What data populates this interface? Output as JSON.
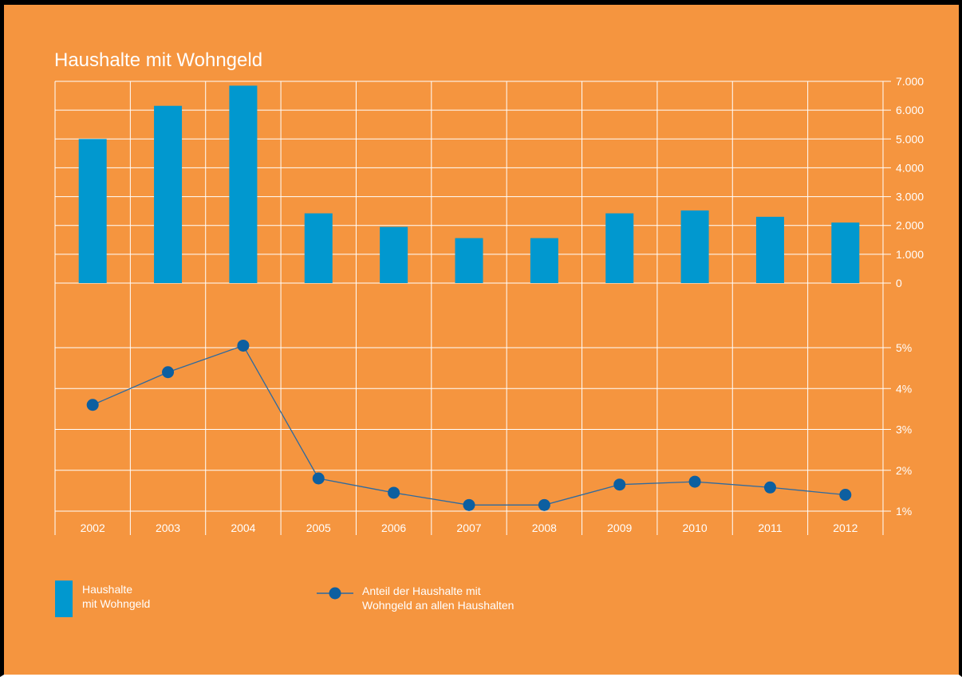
{
  "title": "Haushalte mit Wohngeld",
  "colors": {
    "background": "#f5953f",
    "bar": "#0198cf",
    "line": "#2d6aa0",
    "grid": "#ffffff"
  },
  "legend": {
    "bar_line1": "Haushalte",
    "bar_line2": "mit Wohngeld",
    "line_line1": "Anteil der Haushalte mit",
    "line_line2": "Wohngeld an allen Haushalten"
  },
  "chart_data": [
    {
      "type": "bar",
      "categories": [
        "2002",
        "2003",
        "2004",
        "2005",
        "2006",
        "2007",
        "2008",
        "2009",
        "2010",
        "2011",
        "2012"
      ],
      "series": [
        {
          "name": "Haushalte mit Wohngeld",
          "values": [
            5000,
            6150,
            6850,
            2420,
            1950,
            1560,
            1560,
            2420,
            2520,
            2300,
            2100
          ]
        }
      ],
      "ylim": [
        0,
        7000
      ],
      "y_ticks": [
        "0",
        "1.000",
        "2.000",
        "3.000",
        "4.000",
        "5.000",
        "6.000",
        "7.000"
      ],
      "y_axis_side": "right",
      "grid": true
    },
    {
      "type": "line",
      "categories": [
        "2002",
        "2003",
        "2004",
        "2005",
        "2006",
        "2007",
        "2008",
        "2009",
        "2010",
        "2011",
        "2012"
      ],
      "series": [
        {
          "name": "Anteil der Haushalte mit Wohngeld an allen Haushalten",
          "values": [
            3.6,
            4.4,
            5.05,
            1.8,
            1.45,
            1.15,
            1.15,
            1.65,
            1.72,
            1.58,
            1.4
          ]
        }
      ],
      "ylim": [
        1,
        5
      ],
      "y_ticks": [
        "1%",
        "2%",
        "3%",
        "4%",
        "5%"
      ],
      "y_axis_side": "right",
      "grid": true
    }
  ]
}
